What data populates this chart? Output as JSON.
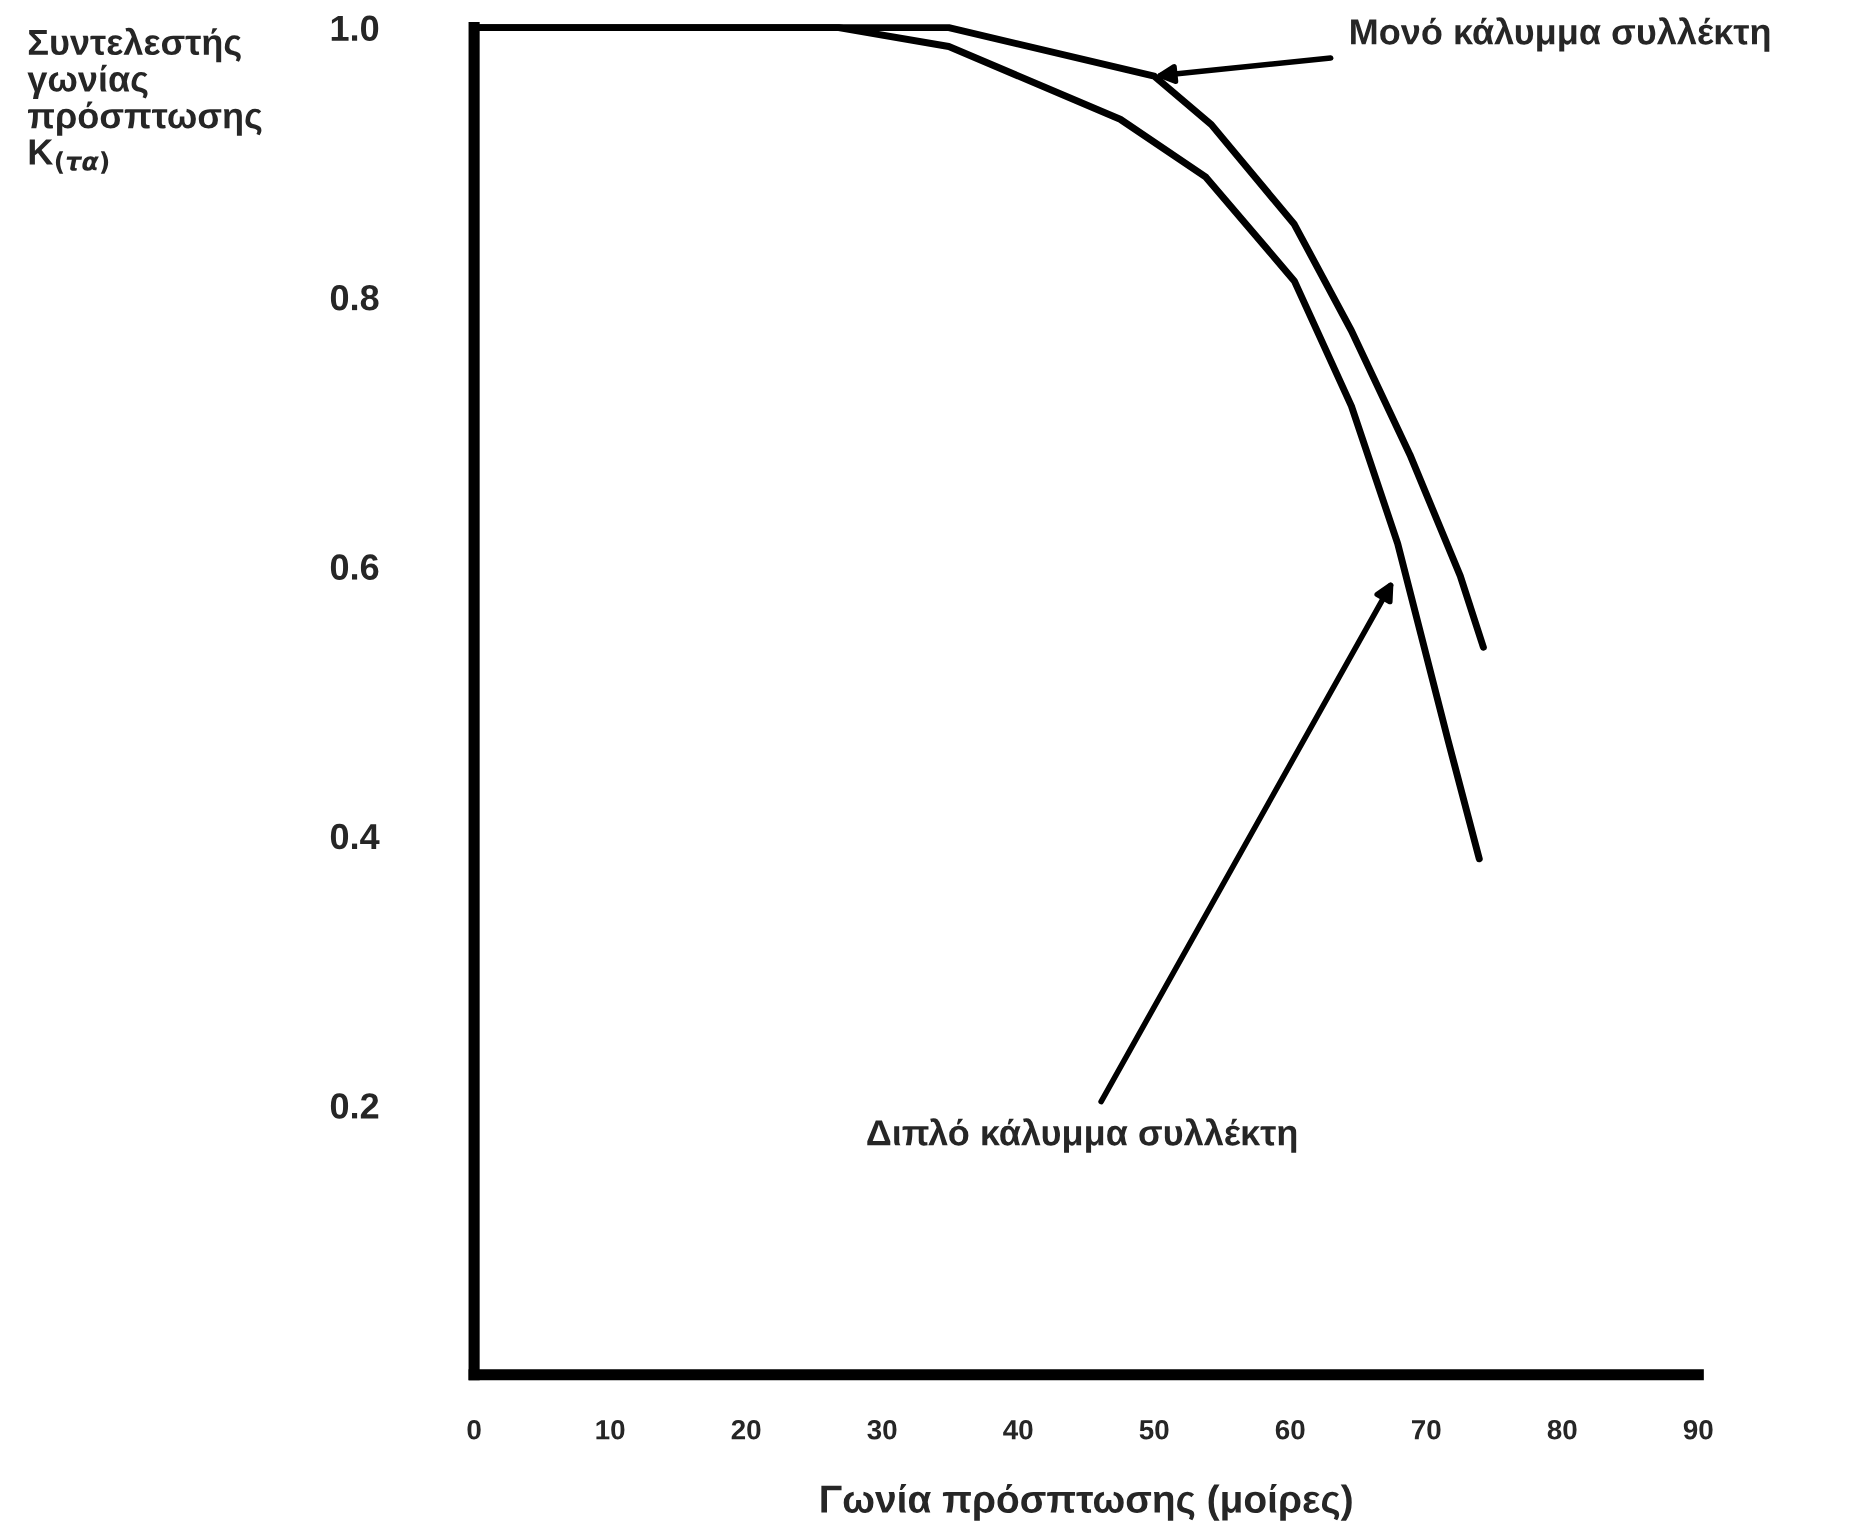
{
  "chart_data": {
    "type": "line",
    "xlabel": "Γωνία πρόσπτωσης (μοίρες)",
    "ylabel": "Συντελεστής\nγωνίας\nπρόσπτωσης\nK$_{(τα)}$",
    "series": [
      {
        "color": "#000000",
        "x": [
          0,
          10,
          20,
          30,
          34.9,
          50,
          54.2,
          60.3,
          64.5,
          68.8,
          72.5,
          74.2
        ],
        "values": [
          1.0,
          1.0,
          1.0,
          1.0,
          1.0,
          0.964,
          0.928,
          0.854,
          0.775,
          0.683,
          0.593,
          0.54
        ]
      },
      {
        "color": "#000000",
        "x": [
          0,
          10,
          20,
          26.8,
          34.9,
          47.5,
          53.8,
          60.3,
          64.5,
          67.9,
          71.6,
          73.9
        ],
        "values": [
          1.0,
          1.0,
          1.0,
          1.0,
          0.986,
          0.932,
          0.889,
          0.812,
          0.719,
          0.617,
          0.471,
          0.383
        ]
      }
    ],
    "annotations": [
      {
        "text": "Μονό κάλυμμα συλλέκτη",
        "x": 50,
        "y": 0.964
      },
      {
        "text": "Διπλό κάλυμμα συλλέκτη",
        "x": 67.6,
        "y": 0.59
      }
    ],
    "xlim": [
      0,
      90
    ],
    "xticks": [
      0,
      10,
      20,
      30,
      40,
      50,
      60,
      70,
      80,
      90
    ],
    "ylim": [
      0,
      1.0
    ],
    "yticks": [
      0.2,
      0.4,
      0.6,
      0.8,
      {
        "value": 1.0,
        "label": "1.0"
      }
    ],
    "grid": false,
    "marker": "none",
    "line_style": "solid"
  }
}
